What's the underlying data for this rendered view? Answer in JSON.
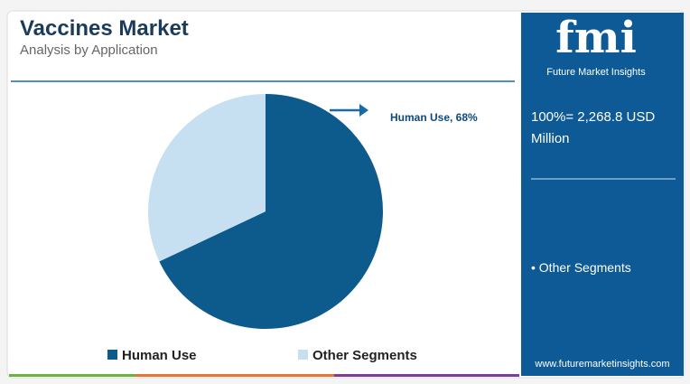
{
  "chart_data": {
    "type": "pie",
    "title": "Vaccines Market",
    "subtitle": "Analysis by Application",
    "categories": [
      "Human Use",
      "Other Segments"
    ],
    "values": [
      68,
      32
    ],
    "value_labels": [
      "Human Use, 68%",
      null
    ],
    "colors": [
      "#0d5a8c",
      "#c6e0f2"
    ],
    "legend": "bottom"
  },
  "side_panel": {
    "logo": "fmi",
    "logo_caption": "Future Market Insights",
    "total_note": "100%= 2,268.8 USD Million",
    "segment_note": "• Other Segments",
    "website": "www.futuremarketinsights.com"
  }
}
